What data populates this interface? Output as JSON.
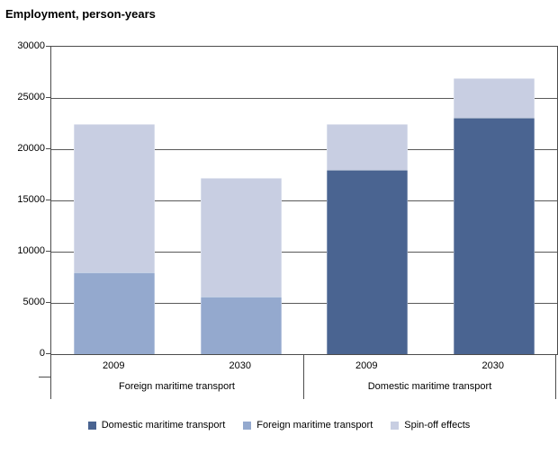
{
  "title": "Employment, person-years",
  "chart_data": {
    "type": "bar",
    "stacked": true,
    "title": "Employment, person-years",
    "ylim": [
      0,
      30000
    ],
    "ytick_step": 5000,
    "ytick_labels": [
      "0",
      "5000",
      "10000",
      "15000",
      "20000",
      "25000",
      "30000"
    ],
    "grid": true,
    "legend_position": "bottom",
    "groups": [
      {
        "label": "Foreign maritime transport",
        "years": [
          "2009",
          "2030"
        ]
      },
      {
        "label": "Domestic maritime transport",
        "years": [
          "2009",
          "2030"
        ]
      }
    ],
    "series": [
      {
        "name": "Domestic maritime transport",
        "color": "#4a6491",
        "values": [
          0,
          0,
          18000,
          23100
        ]
      },
      {
        "name": "Foreign maritime transport",
        "color": "#94a9ce",
        "values": [
          8000,
          5600,
          0,
          0
        ]
      },
      {
        "name": "Spin-off effects",
        "color": "#c8cee2",
        "values": [
          14500,
          11600,
          4500,
          3800
        ]
      }
    ],
    "bar_totals": [
      22500,
      17200,
      22500,
      26900
    ]
  },
  "colors": {
    "axis": "#4c4c4c",
    "gridline": "#595959",
    "text": "#000000",
    "background": "#ffffff"
  }
}
